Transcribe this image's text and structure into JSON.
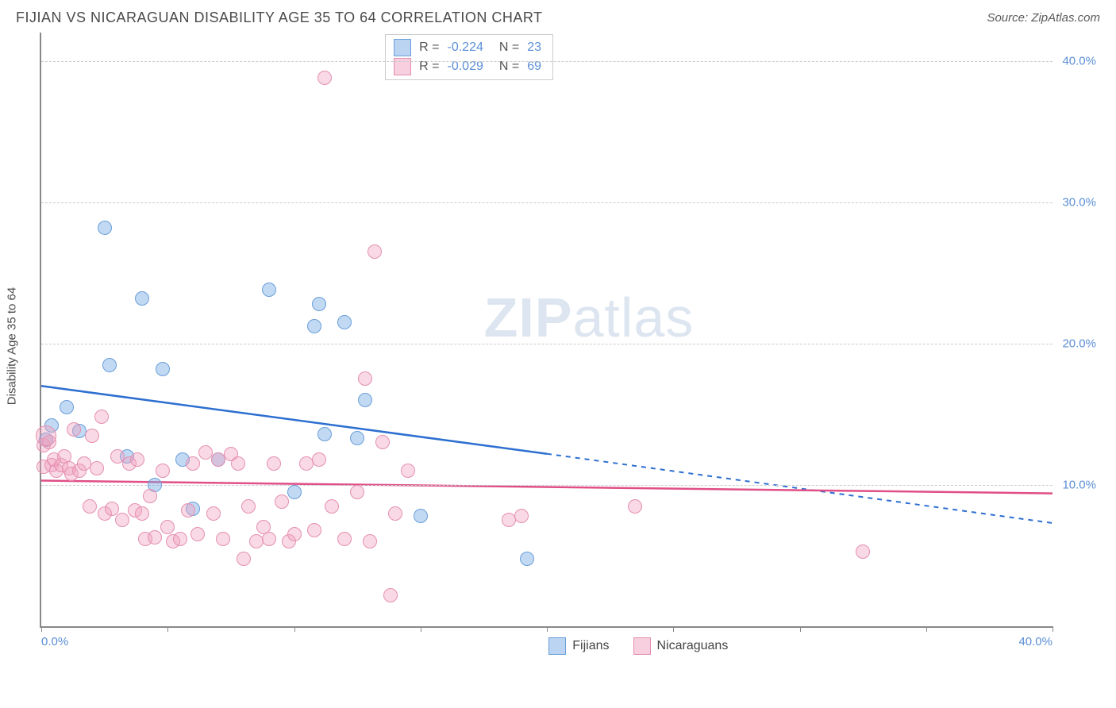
{
  "header": {
    "title": "FIJIAN VS NICARAGUAN DISABILITY AGE 35 TO 64 CORRELATION CHART",
    "source": "Source: ZipAtlas.com"
  },
  "ylabel": "Disability Age 35 to 64",
  "watermark": {
    "zip": "ZIP",
    "atlas": "atlas"
  },
  "chart": {
    "type": "scatter",
    "xlim": [
      0,
      40
    ],
    "ylim": [
      0,
      42
    ],
    "ygrid": [
      {
        "y": 10,
        "label": "10.0%"
      },
      {
        "y": 20,
        "label": "20.0%"
      },
      {
        "y": 30,
        "label": "30.0%"
      },
      {
        "y": 40,
        "label": "40.0%"
      }
    ],
    "xticks": [
      0,
      5,
      10,
      15,
      20,
      25,
      30,
      35,
      40
    ],
    "xtick_labels": {
      "first": "0.0%",
      "last": "40.0%"
    },
    "background_color": "#ffffff",
    "grid_color": "#cccccc",
    "series": [
      {
        "name": "Fijians",
        "color_fill": "rgba(120,170,230,0.45)",
        "color_stroke": "#6a9fd8",
        "marker_radius": 9,
        "r": "-0.224",
        "n": "23",
        "trend": {
          "x1": 0,
          "y1": 17.0,
          "x2_solid": 20,
          "y2_solid": 12.2,
          "x2": 40,
          "y2": 7.3,
          "stroke": "#2d6fd0",
          "width": 2.5
        },
        "points": [
          {
            "x": 0.2,
            "y": 13.2
          },
          {
            "x": 0.4,
            "y": 14.2
          },
          {
            "x": 1.0,
            "y": 15.5
          },
          {
            "x": 1.5,
            "y": 13.8
          },
          {
            "x": 2.5,
            "y": 28.2
          },
          {
            "x": 2.7,
            "y": 18.5
          },
          {
            "x": 3.4,
            "y": 12.0
          },
          {
            "x": 4.0,
            "y": 23.2
          },
          {
            "x": 4.5,
            "y": 10.0
          },
          {
            "x": 4.8,
            "y": 18.2
          },
          {
            "x": 5.6,
            "y": 11.8
          },
          {
            "x": 6.0,
            "y": 8.3
          },
          {
            "x": 7.0,
            "y": 11.8
          },
          {
            "x": 9.0,
            "y": 23.8
          },
          {
            "x": 10.0,
            "y": 9.5
          },
          {
            "x": 10.8,
            "y": 21.2
          },
          {
            "x": 11.0,
            "y": 22.8
          },
          {
            "x": 11.2,
            "y": 13.6
          },
          {
            "x": 12.0,
            "y": 21.5
          },
          {
            "x": 12.5,
            "y": 13.3
          },
          {
            "x": 12.8,
            "y": 16.0
          },
          {
            "x": 15.0,
            "y": 7.8
          },
          {
            "x": 19.2,
            "y": 4.8
          }
        ]
      },
      {
        "name": "Nicaraguans",
        "color_fill": "rgba(240,160,190,0.40)",
        "color_stroke": "#e58fb0",
        "marker_radius": 9,
        "r": "-0.029",
        "n": "69",
        "trend": {
          "x1": 0,
          "y1": 10.3,
          "x2_solid": 40,
          "y2_solid": 9.4,
          "x2": 40,
          "y2": 9.4,
          "stroke": "#e04f86",
          "width": 2.5
        },
        "points": [
          {
            "x": 0.1,
            "y": 12.8
          },
          {
            "x": 0.1,
            "y": 11.3
          },
          {
            "x": 0.3,
            "y": 13.0
          },
          {
            "x": 0.4,
            "y": 11.4
          },
          {
            "x": 0.5,
            "y": 11.8
          },
          {
            "x": 0.6,
            "y": 11.0
          },
          {
            "x": 0.8,
            "y": 11.4
          },
          {
            "x": 0.9,
            "y": 12.0
          },
          {
            "x": 1.1,
            "y": 11.2
          },
          {
            "x": 1.2,
            "y": 10.8
          },
          {
            "x": 1.3,
            "y": 13.9
          },
          {
            "x": 1.5,
            "y": 11.0
          },
          {
            "x": 1.7,
            "y": 11.5
          },
          {
            "x": 1.9,
            "y": 8.5
          },
          {
            "x": 2.0,
            "y": 13.5
          },
          {
            "x": 2.2,
            "y": 11.2
          },
          {
            "x": 2.4,
            "y": 14.8
          },
          {
            "x": 2.5,
            "y": 8.0
          },
          {
            "x": 2.8,
            "y": 8.3
          },
          {
            "x": 3.0,
            "y": 12.0
          },
          {
            "x": 3.2,
            "y": 7.5
          },
          {
            "x": 3.5,
            "y": 11.5
          },
          {
            "x": 3.7,
            "y": 8.2
          },
          {
            "x": 3.8,
            "y": 11.8
          },
          {
            "x": 4.0,
            "y": 8.0
          },
          {
            "x": 4.1,
            "y": 6.2
          },
          {
            "x": 4.3,
            "y": 9.2
          },
          {
            "x": 4.5,
            "y": 6.3
          },
          {
            "x": 4.8,
            "y": 11.0
          },
          {
            "x": 5.0,
            "y": 7.0
          },
          {
            "x": 5.2,
            "y": 6.0
          },
          {
            "x": 5.5,
            "y": 6.2
          },
          {
            "x": 5.8,
            "y": 8.2
          },
          {
            "x": 6.0,
            "y": 11.5
          },
          {
            "x": 6.2,
            "y": 6.5
          },
          {
            "x": 6.5,
            "y": 12.3
          },
          {
            "x": 6.8,
            "y": 8.0
          },
          {
            "x": 7.0,
            "y": 11.8
          },
          {
            "x": 7.2,
            "y": 6.2
          },
          {
            "x": 7.5,
            "y": 12.2
          },
          {
            "x": 7.8,
            "y": 11.5
          },
          {
            "x": 8.0,
            "y": 4.8
          },
          {
            "x": 8.2,
            "y": 8.5
          },
          {
            "x": 8.5,
            "y": 6.0
          },
          {
            "x": 8.8,
            "y": 7.0
          },
          {
            "x": 9.0,
            "y": 6.2
          },
          {
            "x": 9.2,
            "y": 11.5
          },
          {
            "x": 9.5,
            "y": 8.8
          },
          {
            "x": 9.8,
            "y": 6.0
          },
          {
            "x": 10.0,
            "y": 6.5
          },
          {
            "x": 10.5,
            "y": 11.5
          },
          {
            "x": 10.8,
            "y": 6.8
          },
          {
            "x": 11.0,
            "y": 11.8
          },
          {
            "x": 11.2,
            "y": 38.8
          },
          {
            "x": 11.5,
            "y": 8.5
          },
          {
            "x": 12.0,
            "y": 6.2
          },
          {
            "x": 12.5,
            "y": 9.5
          },
          {
            "x": 12.8,
            "y": 17.5
          },
          {
            "x": 13.0,
            "y": 6.0
          },
          {
            "x": 13.2,
            "y": 26.5
          },
          {
            "x": 13.5,
            "y": 13.0
          },
          {
            "x": 13.8,
            "y": 2.2
          },
          {
            "x": 14.0,
            "y": 8.0
          },
          {
            "x": 14.5,
            "y": 11.0
          },
          {
            "x": 18.5,
            "y": 7.5
          },
          {
            "x": 19.0,
            "y": 7.8
          },
          {
            "x": 23.5,
            "y": 8.5
          },
          {
            "x": 32.5,
            "y": 5.3
          },
          {
            "x": 0.2,
            "y": 13.5,
            "r": 13
          }
        ]
      }
    ]
  },
  "legend": {
    "r_label": "R =",
    "n_label": "N ="
  }
}
